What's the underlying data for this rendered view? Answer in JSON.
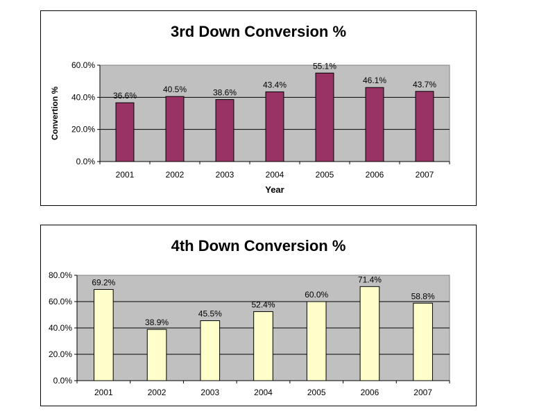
{
  "chart_data": [
    {
      "type": "bar",
      "title": "3rd Down Conversion %",
      "xlabel": "Year",
      "ylabel": "Convertion %",
      "categories": [
        "2001",
        "2002",
        "2003",
        "2004",
        "2005",
        "2006",
        "2007"
      ],
      "values": [
        36.6,
        40.5,
        38.6,
        43.4,
        55.1,
        46.1,
        43.7
      ],
      "data_labels": [
        "36.6%",
        "40.5%",
        "38.6%",
        "43.4%",
        "55.1%",
        "46.1%",
        "43.7%"
      ],
      "ylim": [
        0,
        60
      ],
      "yticks": [
        "0.0%",
        "20.0%",
        "40.0%",
        "60.0%"
      ],
      "grid": true,
      "colors": {
        "bar": "#993366",
        "plot_bg": "#c0c0c0"
      }
    },
    {
      "type": "bar",
      "title": "4th Down Conversion %",
      "xlabel": "",
      "ylabel": "",
      "categories": [
        "2001",
        "2002",
        "2003",
        "2004",
        "2005",
        "2006",
        "2007"
      ],
      "values": [
        69.2,
        38.9,
        45.5,
        52.4,
        60.0,
        71.4,
        58.8
      ],
      "data_labels": [
        "69.2%",
        "38.9%",
        "45.5%",
        "52.4%",
        "60.0%",
        "71.4%",
        "58.8%"
      ],
      "ylim": [
        0,
        80
      ],
      "yticks": [
        "0.0%",
        "20.0%",
        "40.0%",
        "60.0%",
        "80.0%"
      ],
      "grid": true,
      "colors": {
        "bar": "#ffffcc",
        "plot_bg": "#c0c0c0"
      }
    }
  ]
}
